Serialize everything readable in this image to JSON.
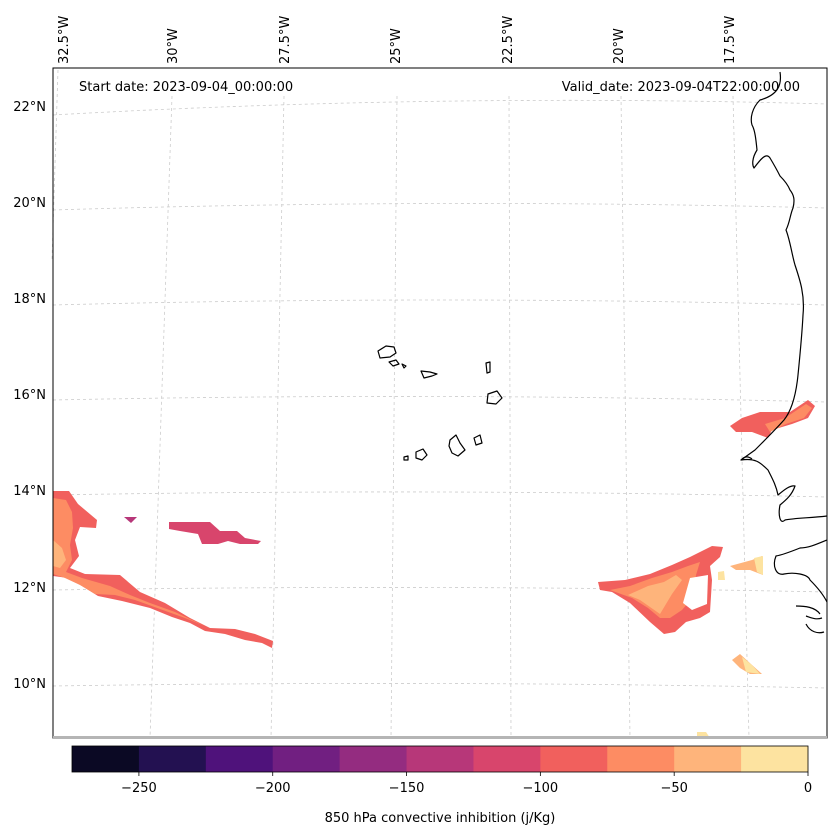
{
  "map": {
    "start_label": "Start date: 2023-09-04_00:00:00",
    "valid_label": "Valid_date: 2023-09-04T22:00:00.00",
    "longitude_labels": [
      "32.5°W",
      "30°W",
      "27.5°W",
      "25°W",
      "22.5°W",
      "20°W",
      "17.5°W"
    ],
    "latitude_labels": [
      "22°N",
      "20°N",
      "18°N",
      "16°N",
      "14°N",
      "12°N",
      "10°N"
    ]
  },
  "colorbar": {
    "label": "850 hPa convective inhibition (j/Kg)",
    "levels": [
      -275,
      -250,
      -225,
      -200,
      -175,
      -150,
      -125,
      -100,
      -75,
      -50,
      -25,
      0
    ],
    "tick_values": [
      -250,
      -200,
      -150,
      -100,
      -50,
      0
    ],
    "tick_labels": [
      "−250",
      "−200",
      "−150",
      "−100",
      "−50",
      "0"
    ],
    "colors": [
      "#0b0924",
      "#231151",
      "#4f127b",
      "#711f81",
      "#942c80",
      "#b73779",
      "#d8456c",
      "#f1605d",
      "#fd8c63",
      "#feb47b",
      "#fde3a0"
    ]
  }
}
